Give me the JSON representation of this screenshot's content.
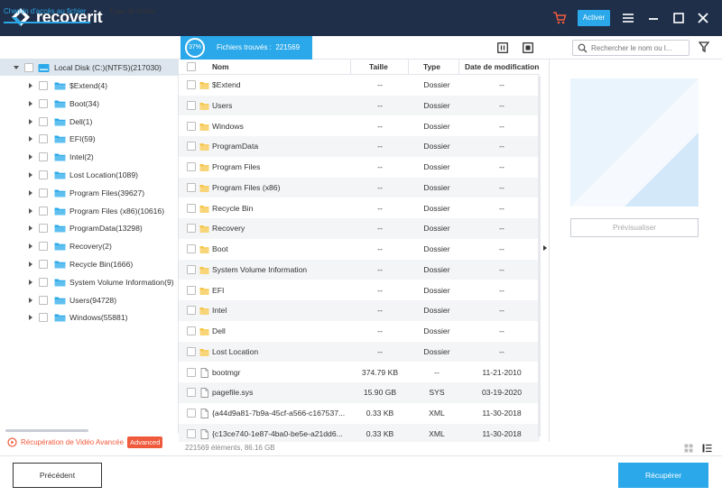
{
  "app": {
    "name": "recoverit"
  },
  "titlebar": {
    "activate_label": "Activer",
    "icons": [
      "cart-icon",
      "menu-icon",
      "minimize-icon",
      "maximize-icon",
      "close-icon"
    ]
  },
  "tabs": [
    {
      "label": "Chemin d'accès au fichier",
      "active": true
    },
    {
      "label": "Type de fichier",
      "active": false
    }
  ],
  "scan": {
    "percent": "37%",
    "found_label": "Fichiers trouvés :",
    "found_count": "221569"
  },
  "search": {
    "placeholder": "Rechercher le nom ou l..."
  },
  "tree": {
    "root": {
      "label": "Local Disk (C:)(NTFS)(217030)"
    },
    "items": [
      {
        "label": "$Extend(4)"
      },
      {
        "label": "Boot(34)"
      },
      {
        "label": "Dell(1)"
      },
      {
        "label": "EFI(59)"
      },
      {
        "label": "Intel(2)"
      },
      {
        "label": "Lost Location(1089)"
      },
      {
        "label": "Program Files(39627)"
      },
      {
        "label": "Program Files (x86)(10616)"
      },
      {
        "label": "ProgramData(13298)"
      },
      {
        "label": "Recovery(2)"
      },
      {
        "label": "Recycle Bin(1666)"
      },
      {
        "label": "System Volume Information(9)"
      },
      {
        "label": "Users(94728)"
      },
      {
        "label": "Windows(55881)"
      }
    ]
  },
  "advanced": {
    "label": "Récupération de Vidéo Avancée",
    "badge": "Advanced"
  },
  "columns": {
    "name": "Nom",
    "size": "Taille",
    "type": "Type",
    "date": "Date de modification"
  },
  "files": [
    {
      "name": "$Extend",
      "size": "--",
      "type": "Dossier",
      "date": "--",
      "kind": "folder"
    },
    {
      "name": "Users",
      "size": "--",
      "type": "Dossier",
      "date": "--",
      "kind": "folder"
    },
    {
      "name": "Windows",
      "size": "--",
      "type": "Dossier",
      "date": "--",
      "kind": "folder"
    },
    {
      "name": "ProgramData",
      "size": "--",
      "type": "Dossier",
      "date": "--",
      "kind": "folder"
    },
    {
      "name": "Program Files",
      "size": "--",
      "type": "Dossier",
      "date": "--",
      "kind": "folder"
    },
    {
      "name": "Program Files (x86)",
      "size": "--",
      "type": "Dossier",
      "date": "--",
      "kind": "folder"
    },
    {
      "name": "Recycle Bin",
      "size": "--",
      "type": "Dossier",
      "date": "--",
      "kind": "folder"
    },
    {
      "name": "Recovery",
      "size": "--",
      "type": "Dossier",
      "date": "--",
      "kind": "folder"
    },
    {
      "name": "Boot",
      "size": "--",
      "type": "Dossier",
      "date": "--",
      "kind": "folder"
    },
    {
      "name": "System Volume Information",
      "size": "--",
      "type": "Dossier",
      "date": "--",
      "kind": "folder"
    },
    {
      "name": "EFI",
      "size": "--",
      "type": "Dossier",
      "date": "--",
      "kind": "folder"
    },
    {
      "name": "Intel",
      "size": "--",
      "type": "Dossier",
      "date": "--",
      "kind": "folder"
    },
    {
      "name": "Dell",
      "size": "--",
      "type": "Dossier",
      "date": "--",
      "kind": "folder"
    },
    {
      "name": "Lost Location",
      "size": "--",
      "type": "Dossier",
      "date": "--",
      "kind": "folder"
    },
    {
      "name": "bootmgr",
      "size": "374.79  KB",
      "type": "--",
      "date": "11-21-2010",
      "kind": "file"
    },
    {
      "name": "pagefile.sys",
      "size": "15.90  GB",
      "type": "SYS",
      "date": "03-19-2020",
      "kind": "file"
    },
    {
      "name": "{a44d9a81-7b9a-45cf-a566-c167537...",
      "size": "0.33  KB",
      "type": "XML",
      "date": "11-30-2018",
      "kind": "file"
    },
    {
      "name": "{c13ce740-1e87-4ba0-be5e-a21dd6...",
      "size": "0.33  KB",
      "type": "XML",
      "date": "11-30-2018",
      "kind": "file"
    }
  ],
  "summary": "221569 éléments, 86.16  GB",
  "preview": {
    "button_label": "Prévisualiser"
  },
  "buttons": {
    "previous": "Précédent",
    "recover": "Récupérer"
  },
  "colors": {
    "accent": "#2aa8e9",
    "titlebar": "#1f2f4a",
    "folder_yellow": "#f5c342",
    "folder_blue": "#2aa8e9",
    "advanced": "#f05a3c"
  }
}
